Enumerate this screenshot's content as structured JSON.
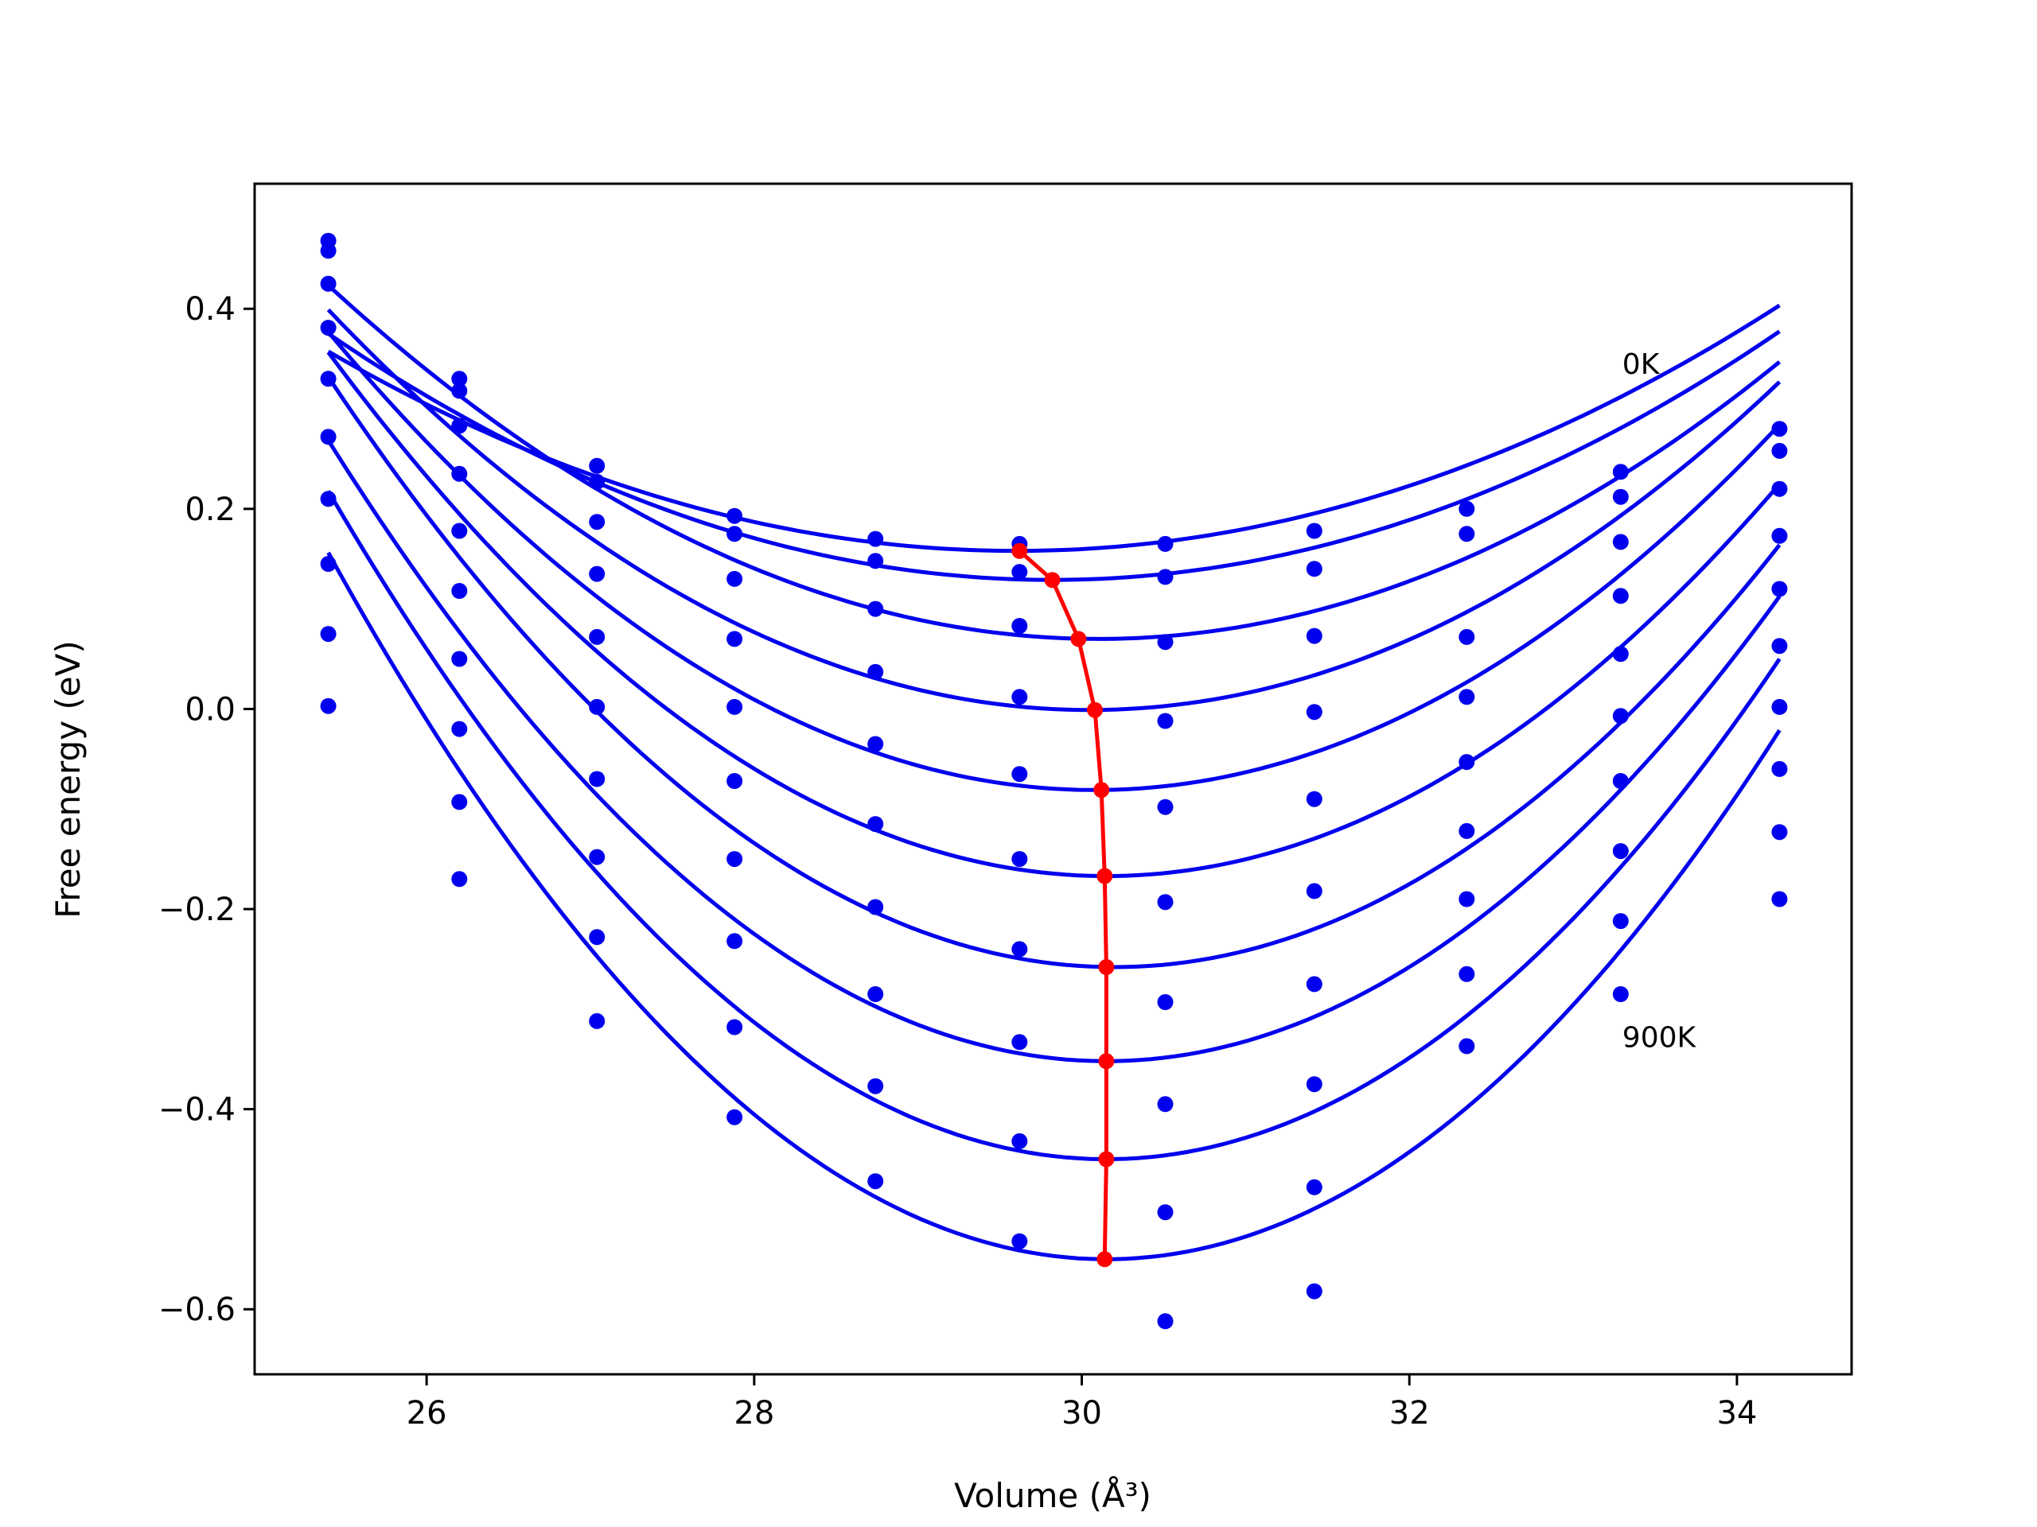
{
  "chart_data": {
    "type": "scatter",
    "xlabel": "Volume (Å³)",
    "ylabel": "Free energy (eV)",
    "xlim": [
      24.95,
      34.7
    ],
    "ylim": [
      -0.665,
      0.525
    ],
    "xticks": [
      26,
      28,
      30,
      32,
      34
    ],
    "yticks": [
      -0.6,
      -0.4,
      -0.2,
      0.0,
      0.2,
      0.4
    ],
    "x_tick_labels": [
      "26",
      "28",
      "30",
      "32",
      "34"
    ],
    "y_tick_labels": [
      "−0.6",
      "−0.4",
      "−0.2",
      "0.0",
      "0.2",
      "0.4"
    ],
    "grid": false,
    "volumes": [
      25.4,
      26.2,
      27.04,
      27.88,
      28.74,
      29.62,
      30.51,
      31.42,
      32.35,
      33.29,
      34.26
    ],
    "curve_color": "#0000ee",
    "equilibrium_color": "#ff0000",
    "annotations": [
      {
        "text": "0K",
        "x": 33.3,
        "y": 0.335
      },
      {
        "text": "900K",
        "x": 33.3,
        "y": -0.338
      }
    ],
    "series": [
      {
        "points": [
          0.468,
          0.33,
          0.243,
          0.193,
          0.17,
          0.165,
          0.165,
          0.178,
          0.2,
          0.237,
          0.28
        ],
        "fit": {
          "a": 0.0113,
          "v0": 29.6,
          "f0": 0.158
        }
      },
      {
        "points": [
          0.458,
          0.318,
          0.227,
          0.175,
          0.148,
          0.137,
          0.132,
          0.14,
          0.175,
          0.212,
          0.258
        ],
        "fit": {
          "a": 0.0126,
          "v0": 29.82,
          "f0": 0.129
        }
      },
      {
        "points": [
          0.425,
          0.283,
          0.187,
          0.13,
          0.1,
          0.083,
          0.067,
          0.073,
          0.072,
          0.167,
          0.22
        ],
        "fit": {
          "a": 0.016,
          "v0": 30.1,
          "f0": 0.07
        }
      },
      {
        "points": [
          0.381,
          0.235,
          0.135,
          0.07,
          0.037,
          0.012,
          -0.012,
          -0.003,
          0.012,
          0.113,
          0.173
        ],
        "fit": {
          "a": 0.0185,
          "v0": 30.05,
          "f0": -0.001
        }
      },
      {
        "points": [
          0.33,
          0.178,
          0.072,
          0.002,
          -0.035,
          -0.065,
          -0.098,
          -0.09,
          -0.053,
          0.055,
          0.12
        ],
        "fit": {
          "a": 0.0209,
          "v0": 30.08,
          "f0": -0.081
        }
      },
      {
        "points": [
          0.272,
          0.118,
          0.002,
          -0.072,
          -0.115,
          -0.15,
          -0.193,
          -0.182,
          -0.122,
          -0.007,
          0.063
        ],
        "fit": {
          "a": 0.0232,
          "v0": 30.15,
          "f0": -0.167
        }
      },
      {
        "points": [
          0.21,
          0.05,
          -0.07,
          -0.15,
          -0.198,
          -0.24,
          -0.293,
          -0.275,
          -0.19,
          -0.072,
          0.002
        ],
        "fit": {
          "a": 0.0256,
          "v0": 30.2,
          "f0": -0.258
        }
      },
      {
        "points": [
          0.145,
          -0.02,
          -0.148,
          -0.232,
          -0.285,
          -0.333,
          -0.395,
          -0.375,
          -0.265,
          -0.142,
          -0.06
        ],
        "fit": {
          "a": 0.0275,
          "v0": 30.15,
          "f0": -0.352
        }
      },
      {
        "points": [
          0.075,
          -0.093,
          -0.228,
          -0.318,
          -0.377,
          -0.432,
          -0.503,
          -0.478,
          -0.337,
          -0.212,
          -0.123
        ],
        "fit": {
          "a": 0.0296,
          "v0": 30.15,
          "f0": -0.45
        }
      },
      {
        "points": [
          0.003,
          -0.17,
          -0.312,
          -0.408,
          -0.472,
          -0.532,
          -0.612,
          -0.582,
          null,
          -0.285,
          -0.19
        ],
        "fit": {
          "a": 0.0313,
          "v0": 30.15,
          "f0": -0.55
        }
      }
    ],
    "equilibrium": {
      "x": [
        29.62,
        29.82,
        29.98,
        30.08,
        30.12,
        30.14,
        30.15,
        30.15,
        30.15,
        30.14
      ],
      "y": [
        0.158,
        0.129,
        0.07,
        -0.001,
        -0.081,
        -0.167,
        -0.258,
        -0.352,
        -0.45,
        -0.55
      ]
    }
  }
}
